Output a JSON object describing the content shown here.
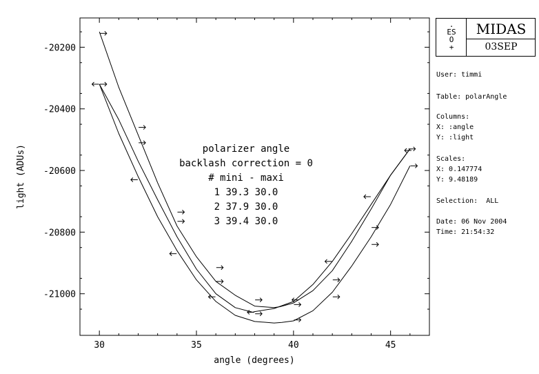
{
  "chart_data": {
    "type": "line",
    "xlabel": "angle (degrees)",
    "ylabel": "light (ADUs)",
    "xlim": [
      29,
      47
    ],
    "ylim": [
      -21135,
      -20105
    ],
    "xticks": [
      30,
      35,
      40,
      45
    ],
    "yticks": [
      -20200,
      -20400,
      -20600,
      -20800,
      -21000
    ],
    "annotation": {
      "lines": [
        "polarizer angle",
        "backlash correction = 0",
        "# mini - maxi",
        "1 39.3 30.0",
        "2 37.9 30.0",
        "3 39.4 30.0"
      ]
    },
    "series": [
      {
        "curve": [
          [
            30,
            -20150
          ],
          [
            31,
            -20330
          ],
          [
            32,
            -20485
          ],
          [
            33,
            -20640
          ],
          [
            34,
            -20780
          ],
          [
            35,
            -20880
          ],
          [
            36,
            -20960
          ],
          [
            37,
            -21005
          ],
          [
            38,
            -21040
          ],
          [
            39,
            -21045
          ],
          [
            39.3,
            -21042
          ],
          [
            40,
            -21030
          ],
          [
            41,
            -20990
          ],
          [
            42,
            -20925
          ],
          [
            43,
            -20830
          ],
          [
            44,
            -20725
          ],
          [
            45,
            -20615
          ],
          [
            46,
            -20530
          ]
        ],
        "points": [
          [
            30.2,
            -20155,
            "right"
          ],
          [
            32.2,
            -20460,
            "right"
          ],
          [
            34.2,
            -20735,
            "right"
          ],
          [
            36.2,
            -20915,
            "right"
          ],
          [
            38.2,
            -21020,
            "right"
          ],
          [
            40.2,
            -21035,
            "right"
          ],
          [
            42.2,
            -20955,
            "right"
          ],
          [
            44.2,
            -20785,
            "right"
          ],
          [
            46.1,
            -20530,
            "right"
          ]
        ]
      },
      {
        "curve": [
          [
            30,
            -20320
          ],
          [
            31,
            -20435
          ],
          [
            32,
            -20570
          ],
          [
            33,
            -20695
          ],
          [
            34,
            -20815
          ],
          [
            35,
            -20920
          ],
          [
            36,
            -21000
          ],
          [
            37,
            -21045
          ],
          [
            37.9,
            -21060
          ],
          [
            38,
            -21058
          ],
          [
            39,
            -21048
          ],
          [
            40,
            -21025
          ],
          [
            41,
            -20970
          ],
          [
            42,
            -20895
          ],
          [
            43,
            -20805
          ],
          [
            44,
            -20710
          ],
          [
            45,
            -20615
          ],
          [
            46,
            -20530
          ]
        ],
        "points": [
          [
            30.2,
            -20320,
            "right"
          ],
          [
            32.2,
            -20510,
            "right"
          ],
          [
            34.2,
            -20765,
            "right"
          ],
          [
            36.2,
            -20960,
            "right"
          ],
          [
            38.2,
            -21065,
            "right"
          ],
          [
            40.1,
            -21020,
            "left"
          ],
          [
            41.8,
            -20895,
            "left"
          ],
          [
            43.8,
            -20685,
            "left"
          ],
          [
            45.9,
            -20535,
            "left"
          ]
        ]
      },
      {
        "curve": [
          [
            30,
            -20320
          ],
          [
            31,
            -20480
          ],
          [
            32,
            -20620
          ],
          [
            33,
            -20750
          ],
          [
            34,
            -20860
          ],
          [
            35,
            -20955
          ],
          [
            36,
            -21025
          ],
          [
            37,
            -21070
          ],
          [
            38,
            -21090
          ],
          [
            39,
            -21095
          ],
          [
            39.4,
            -21093
          ],
          [
            40,
            -21088
          ],
          [
            41,
            -21055
          ],
          [
            42,
            -20995
          ],
          [
            43,
            -20910
          ],
          [
            44,
            -20815
          ],
          [
            45,
            -20710
          ],
          [
            46,
            -20585
          ]
        ],
        "points": [
          [
            29.8,
            -20320,
            "left"
          ],
          [
            31.8,
            -20630,
            "left"
          ],
          [
            33.8,
            -20870,
            "left"
          ],
          [
            35.8,
            -21010,
            "left"
          ],
          [
            37.8,
            -21060,
            "left"
          ],
          [
            40.2,
            -21085,
            "right"
          ],
          [
            42.2,
            -21010,
            "right"
          ],
          [
            44.2,
            -20840,
            "right"
          ],
          [
            46.2,
            -20585,
            "right"
          ]
        ]
      }
    ]
  },
  "panel": {
    "eso_lines": [
      ".",
      "ES",
      "O",
      "+"
    ],
    "midas": "MIDAS",
    "date_code": "03SEP",
    "user": "User: timmi",
    "table": "Table: polarAngle",
    "columns_title": "Columns:",
    "col_x": "X: :angle",
    "col_y": "Y: :light",
    "scales_title": "Scales:",
    "scale_x": "X: 0.147774",
    "scale_y": "Y: 9.48189",
    "selection": "Selection:  ALL",
    "date": "Date: 06 Nov 2004",
    "time": "Time: 21:54:32"
  }
}
